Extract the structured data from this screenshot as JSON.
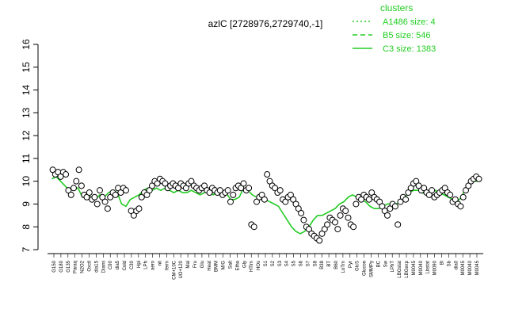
{
  "chart_data": {
    "type": "line",
    "title": "azlC [2728976,2729740,-1]",
    "xlabel": "",
    "ylabel": "",
    "ylim": [
      7,
      16
    ],
    "yticks": [
      7,
      8,
      9,
      10,
      11,
      12,
      13,
      14,
      15,
      16
    ],
    "grid": false,
    "legend": {
      "placement": "top-right",
      "title": "clusters",
      "entries": [
        {
          "label": "A1486 size: 4",
          "linestyle": "dotted"
        },
        {
          "label": "B5 size: 546",
          "linestyle": "dashed"
        },
        {
          "label": "C3 size: 1383",
          "linestyle": "solid"
        }
      ],
      "color": "#22cc22"
    },
    "x_tick_labels": [
      "G150",
      "G180",
      "G135",
      "Paraq",
      "N2O2",
      "Oxctl",
      "dia15",
      "Diami",
      "C90",
      "dia5",
      "Cold",
      "C30",
      "Hpl",
      "LPh",
      "aero",
      "nit",
      "ferm",
      "CM+10C",
      "UO+120",
      "UO+180",
      "UO+90",
      "UO+60",
      "UO+30",
      "Mal",
      "Fru",
      "Glu",
      "Heat",
      "BMM",
      "M/G",
      "M/G",
      "Salt",
      "Etha",
      "Gly",
      "HTim",
      "HOs",
      "S1",
      "S2",
      "S3",
      "S4",
      "S5",
      "S6",
      "S7",
      "S8",
      "B38",
      "BT",
      "B60",
      "LoTm",
      "Pyr",
      "GlcS",
      "Glucon",
      "SMMPy",
      "T1",
      "T2",
      "T3",
      "T4",
      "T5",
      "T6",
      "T7",
      "T8",
      "T9",
      "T10",
      "T11",
      "T12",
      "T13",
      "T14",
      "T15",
      "Sw",
      "BC",
      "LPhT",
      "LBGstat",
      "LBGexp",
      "M0045",
      "M0040",
      "M0045",
      "M010",
      "M0050",
      "M0090",
      "Lbstat",
      "Bl",
      "Sb",
      "dia0",
      "M0045",
      "Mt",
      "Mt0"
    ],
    "x_tick_labels_visible": [
      "G150",
      "G180",
      "G135",
      "Paraq",
      "N2O2",
      "Oxctl",
      "dia15",
      "Diami",
      "C90",
      "dia5",
      "Cold",
      "C30",
      "Hpl",
      "LPh",
      "aero",
      "nit",
      "ferm",
      "CM+10C",
      "UO+120",
      "Mal",
      "Fru",
      "Glu",
      "Heat",
      "BMM",
      "M/G",
      "Salt",
      "Etha",
      "Gly",
      "HTim",
      "HOs",
      "S1",
      "S2",
      "S3",
      "S4",
      "S5",
      "S6",
      "S7",
      "S8",
      "B38",
      "BT",
      "B60",
      "LoTm",
      "Pyr",
      "GlcS",
      "Glucon",
      "SMMPy",
      "BC",
      "Sw",
      "LPhT",
      "LBGstat",
      "LBGexp",
      "M0045",
      "M0040",
      "Lbstat",
      "M0090",
      "Bl",
      "Sb",
      "dia0",
      "M0045",
      "M0040",
      "M0045"
    ],
    "x_range": [
      0,
      100
    ],
    "series": [
      {
        "linestyle": "solid",
        "points": [
          [
            1,
            10.1
          ],
          [
            2,
            10.2
          ],
          [
            3,
            10.0
          ],
          [
            4,
            9.8
          ],
          [
            5,
            9.6
          ],
          [
            6,
            9.7
          ],
          [
            7,
            9.7
          ],
          [
            8,
            9.3
          ],
          [
            9,
            9.4
          ],
          [
            10,
            9.3
          ],
          [
            11,
            9.2
          ],
          [
            12,
            9.4
          ],
          [
            13,
            9.3
          ],
          [
            14,
            9.5
          ],
          [
            15,
            9.6
          ],
          [
            16,
            9.5
          ],
          [
            17,
            9.0
          ],
          [
            18,
            8.9
          ],
          [
            19,
            9.2
          ],
          [
            20,
            9.3
          ],
          [
            21,
            9.4
          ],
          [
            22,
            9.6
          ],
          [
            23,
            9.7
          ],
          [
            24,
            9.6
          ],
          [
            25,
            9.7
          ],
          [
            26,
            9.6
          ],
          [
            27,
            9.7
          ],
          [
            28,
            9.6
          ],
          [
            29,
            9.5
          ],
          [
            30,
            9.6
          ],
          [
            31,
            9.5
          ],
          [
            32,
            9.5
          ],
          [
            33,
            9.6
          ],
          [
            34,
            9.5
          ],
          [
            35,
            9.4
          ],
          [
            36,
            9.5
          ],
          [
            37,
            9.6
          ],
          [
            38,
            9.4
          ],
          [
            39,
            9.5
          ],
          [
            40,
            9.6
          ],
          [
            41,
            9.5
          ],
          [
            42,
            9.2
          ],
          [
            43,
            9.2
          ],
          [
            44,
            9.3
          ],
          [
            45,
            9.7
          ],
          [
            46,
            9.6
          ],
          [
            47,
            9.4
          ],
          [
            48,
            9.3
          ],
          [
            49,
            9.2
          ],
          [
            50,
            9.2
          ],
          [
            51,
            9.1
          ],
          [
            52,
            9.0
          ],
          [
            53,
            8.9
          ],
          [
            54,
            8.6
          ],
          [
            55,
            8.3
          ],
          [
            56,
            8.0
          ],
          [
            57,
            7.8
          ],
          [
            58,
            7.7
          ],
          [
            59,
            7.8
          ],
          [
            60,
            8.0
          ],
          [
            61,
            8.3
          ],
          [
            62,
            8.5
          ],
          [
            63,
            8.5
          ],
          [
            64,
            8.6
          ],
          [
            65,
            8.7
          ],
          [
            66,
            8.8
          ],
          [
            67,
            9.0
          ],
          [
            68,
            9.1
          ],
          [
            69,
            9.3
          ],
          [
            70,
            9.4
          ],
          [
            71,
            9.3
          ],
          [
            72,
            9.2
          ],
          [
            73,
            9.1
          ],
          [
            74,
            8.9
          ],
          [
            75,
            8.8
          ],
          [
            76,
            8.8
          ],
          [
            77,
            8.9
          ],
          [
            78,
            9.0
          ],
          [
            79,
            9.0
          ],
          [
            80,
            9.0
          ],
          [
            81,
            9.1
          ],
          [
            82,
            9.3
          ],
          [
            83,
            9.5
          ],
          [
            84,
            9.6
          ],
          [
            85,
            9.6
          ],
          [
            86,
            9.5
          ],
          [
            87,
            9.4
          ],
          [
            88,
            9.5
          ],
          [
            89,
            9.6
          ],
          [
            90,
            9.5
          ],
          [
            91,
            9.4
          ],
          [
            92,
            9.3
          ],
          [
            93,
            9.2
          ],
          [
            94,
            9.1
          ],
          [
            95,
            9.3
          ],
          [
            96,
            9.7
          ],
          [
            97,
            9.9
          ],
          [
            98,
            10.0
          ],
          [
            99,
            10.0
          ]
        ]
      }
    ],
    "markers": [
      [
        1,
        10.5
      ],
      [
        1.5,
        10.3
      ],
      [
        2,
        10.4
      ],
      [
        2.5,
        10.2
      ],
      [
        3,
        10.4
      ],
      [
        3.5,
        10.3
      ],
      [
        4,
        9.6
      ],
      [
        4.5,
        9.4
      ],
      [
        5,
        9.7
      ],
      [
        5.5,
        10.0
      ],
      [
        6,
        10.5
      ],
      [
        6.5,
        9.8
      ],
      [
        7,
        9.4
      ],
      [
        7.5,
        9.3
      ],
      [
        8,
        9.5
      ],
      [
        8.5,
        9.2
      ],
      [
        9,
        9.3
      ],
      [
        9.5,
        9.0
      ],
      [
        10,
        9.6
      ],
      [
        10.5,
        9.3
      ],
      [
        11,
        9.1
      ],
      [
        11.5,
        8.8
      ],
      [
        12,
        9.3
      ],
      [
        12.5,
        9.5
      ],
      [
        13,
        9.4
      ],
      [
        13.5,
        9.7
      ],
      [
        14,
        9.5
      ],
      [
        14.5,
        9.7
      ],
      [
        15,
        9.6
      ],
      [
        16,
        8.7
      ],
      [
        16.5,
        8.5
      ],
      [
        17,
        8.7
      ],
      [
        17.5,
        8.8
      ],
      [
        18,
        9.3
      ],
      [
        18.5,
        9.5
      ],
      [
        19,
        9.4
      ],
      [
        19.5,
        9.6
      ],
      [
        20,
        9.8
      ],
      [
        20.5,
        10.0
      ],
      [
        21,
        9.9
      ],
      [
        21.5,
        10.1
      ],
      [
        22,
        10.0
      ],
      [
        22.5,
        9.9
      ],
      [
        23,
        9.7
      ],
      [
        23.5,
        9.8
      ],
      [
        24,
        9.9
      ],
      [
        24.5,
        9.8
      ],
      [
        25,
        9.7
      ],
      [
        25.5,
        9.9
      ],
      [
        26,
        9.8
      ],
      [
        26.5,
        9.7
      ],
      [
        27,
        9.9
      ],
      [
        27.5,
        10.0
      ],
      [
        28,
        9.8
      ],
      [
        28.5,
        9.7
      ],
      [
        29,
        9.6
      ],
      [
        29.5,
        9.7
      ],
      [
        30,
        9.8
      ],
      [
        30.5,
        9.6
      ],
      [
        31,
        9.5
      ],
      [
        31.5,
        9.7
      ],
      [
        32,
        9.6
      ],
      [
        32.5,
        9.5
      ],
      [
        33,
        9.6
      ],
      [
        33.5,
        9.4
      ],
      [
        34,
        9.5
      ],
      [
        34.5,
        9.6
      ],
      [
        35,
        9.1
      ],
      [
        35.5,
        9.4
      ],
      [
        36,
        9.7
      ],
      [
        36.5,
        9.8
      ],
      [
        37,
        9.7
      ],
      [
        37.5,
        9.9
      ],
      [
        38,
        9.6
      ],
      [
        38.5,
        9.7
      ],
      [
        39,
        8.1
      ],
      [
        39.5,
        8.0
      ],
      [
        40,
        9.1
      ],
      [
        40.5,
        9.3
      ],
      [
        41,
        9.4
      ],
      [
        41.5,
        9.2
      ],
      [
        42,
        10.3
      ],
      [
        42.5,
        10.0
      ],
      [
        43,
        9.8
      ],
      [
        43.5,
        9.7
      ],
      [
        44,
        9.5
      ],
      [
        44.5,
        9.6
      ],
      [
        45,
        9.2
      ],
      [
        45.5,
        9.1
      ],
      [
        46,
        9.3
      ],
      [
        46.5,
        9.4
      ],
      [
        47,
        9.2
      ],
      [
        47.5,
        9.0
      ],
      [
        48,
        8.8
      ],
      [
        48.5,
        8.6
      ],
      [
        49,
        8.3
      ],
      [
        49.5,
        8.0
      ],
      [
        50,
        7.9
      ],
      [
        50.5,
        7.7
      ],
      [
        51,
        7.6
      ],
      [
        51.5,
        7.5
      ],
      [
        52,
        7.4
      ],
      [
        52.5,
        7.7
      ],
      [
        53,
        7.9
      ],
      [
        53.5,
        8.1
      ],
      [
        54,
        8.4
      ],
      [
        54.5,
        8.3
      ],
      [
        55,
        8.2
      ],
      [
        55.5,
        7.9
      ],
      [
        56,
        8.5
      ],
      [
        56.5,
        8.8
      ],
      [
        57,
        8.7
      ],
      [
        57.5,
        8.4
      ],
      [
        58,
        8.1
      ],
      [
        58.5,
        8.0
      ],
      [
        59,
        9.0
      ],
      [
        59.5,
        9.3
      ],
      [
        60,
        9.2
      ],
      [
        60.5,
        9.4
      ],
      [
        61,
        9.3
      ],
      [
        61.5,
        9.2
      ],
      [
        62,
        9.5
      ],
      [
        62.5,
        9.3
      ],
      [
        63,
        9.2
      ],
      [
        63.5,
        9.1
      ],
      [
        64,
        8.9
      ],
      [
        64.5,
        8.7
      ],
      [
        65,
        8.5
      ],
      [
        65.5,
        8.8
      ],
      [
        66,
        9.0
      ],
      [
        66.5,
        8.9
      ],
      [
        67,
        8.1
      ],
      [
        67.5,
        9.1
      ],
      [
        68,
        9.3
      ],
      [
        68.5,
        9.2
      ],
      [
        69,
        9.5
      ],
      [
        69.5,
        9.7
      ],
      [
        70,
        9.9
      ],
      [
        70.5,
        10.0
      ],
      [
        71,
        9.8
      ],
      [
        71.5,
        9.6
      ],
      [
        72,
        9.7
      ],
      [
        72.5,
        9.5
      ],
      [
        73,
        9.4
      ],
      [
        73.5,
        9.6
      ],
      [
        74,
        9.3
      ],
      [
        74.5,
        9.4
      ],
      [
        75,
        9.5
      ],
      [
        75.5,
        9.6
      ],
      [
        76,
        9.7
      ],
      [
        76.5,
        9.5
      ],
      [
        77,
        9.4
      ],
      [
        77.5,
        9.1
      ],
      [
        78,
        9.2
      ],
      [
        78.5,
        9.0
      ],
      [
        79,
        8.9
      ],
      [
        79.5,
        9.3
      ],
      [
        80,
        9.6
      ],
      [
        80.5,
        9.8
      ],
      [
        81,
        10.0
      ],
      [
        81.5,
        10.1
      ],
      [
        82,
        10.2
      ],
      [
        82.5,
        10.1
      ]
    ]
  }
}
